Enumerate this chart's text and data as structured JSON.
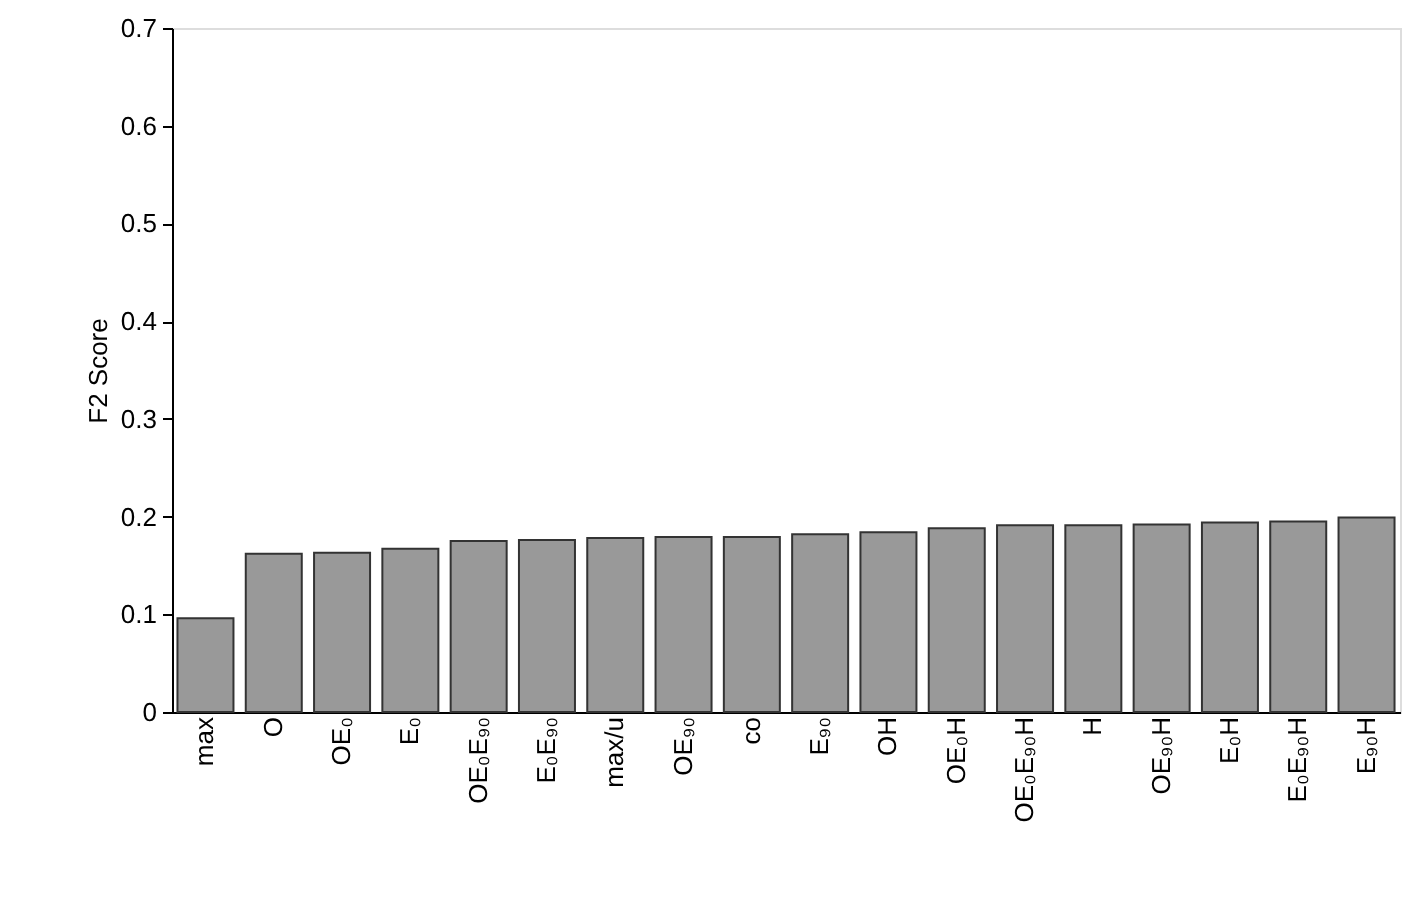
{
  "chart_data": {
    "type": "bar",
    "ylabel": "F2 Score",
    "categories": [
      "max",
      "O",
      "OE₀",
      "E₀",
      "OE₀E₉₀",
      "E₀E₉₀",
      "max/u",
      "OE₉₀",
      "co",
      "E₉₀",
      "OH",
      "OE₀H",
      "OE₀E₉₀H",
      "H",
      "OE₉₀H",
      "E₀H",
      "E₀E₉₀H",
      "E₉₀H"
    ],
    "values": [
      0.096,
      0.162,
      0.163,
      0.167,
      0.175,
      0.176,
      0.178,
      0.179,
      0.179,
      0.182,
      0.184,
      0.188,
      0.191,
      0.191,
      0.192,
      0.194,
      0.195,
      0.199
    ],
    "color": "#999999",
    "ylim": [
      0,
      0.7
    ],
    "yticks": [
      0,
      0.1,
      0.2,
      0.3,
      0.4,
      0.5,
      0.6,
      0.7
    ],
    "grid": false
  }
}
